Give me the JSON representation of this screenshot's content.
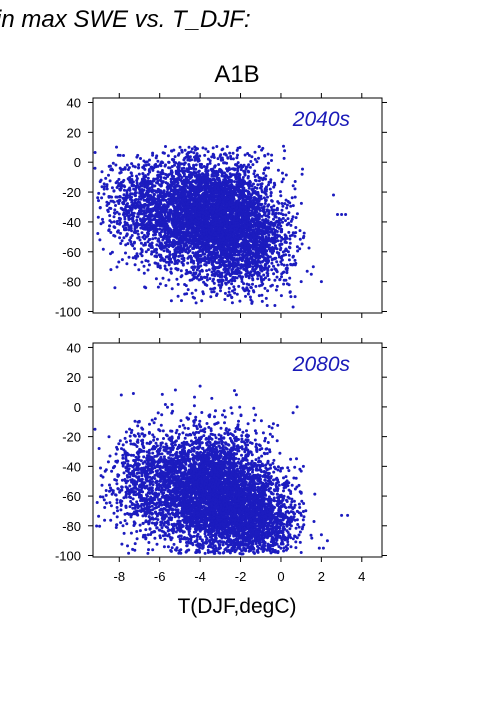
{
  "heading": "in max SWE vs. T_DJF:",
  "colors": {
    "points": "#1c1cbf",
    "panel_label": "#1a1ab8",
    "frame": "#000000"
  },
  "chart_data": {
    "type": "scatter",
    "title": "A1B",
    "xlabel": "T(DJF,degC)",
    "ylabel": "",
    "xlim": [
      -9.3,
      5
    ],
    "ylim": [
      -101,
      43
    ],
    "x_ticks": [
      -8,
      -6,
      -4,
      -2,
      0,
      2,
      4
    ],
    "y_ticks": [
      40,
      20,
      0,
      -20,
      -40,
      -60,
      -80,
      -100
    ],
    "grid": false,
    "panels": [
      {
        "label": "2040s",
        "clusters": [
          {
            "x_mean": -3.6,
            "x_sd": 1.5,
            "y_mean": -35,
            "y_sd": 19,
            "n": 4200
          },
          {
            "x_mean": -1.6,
            "x_sd": 1.1,
            "y_mean": -55,
            "y_sd": 18,
            "n": 1200
          },
          {
            "x_mean": -6.8,
            "x_sd": 1.1,
            "y_mean": -28,
            "y_sd": 17,
            "n": 700
          }
        ],
        "y_clip": [
          -97,
          11
        ],
        "outliers": [
          [
            -9.2,
            -4
          ],
          [
            -8.9,
            -12
          ],
          [
            1.3,
            -73
          ],
          [
            1.6,
            -70
          ],
          [
            2.8,
            -35
          ],
          [
            3.2,
            -35
          ],
          [
            3.0,
            -35
          ],
          [
            1.0,
            -80
          ],
          [
            2.0,
            -80
          ],
          [
            0.6,
            -97
          ],
          [
            -0.3,
            -96
          ],
          [
            2.6,
            -22
          ],
          [
            -0.5,
            -83
          ],
          [
            1.5,
            -75
          ],
          [
            0.7,
            -90
          ]
        ]
      },
      {
        "label": "2080s",
        "clusters": [
          {
            "x_mean": -3.4,
            "x_sd": 1.5,
            "y_mean": -57,
            "y_sd": 20,
            "n": 4200
          },
          {
            "x_mean": -1.3,
            "x_sd": 1.1,
            "y_mean": -78,
            "y_sd": 14,
            "n": 1300
          },
          {
            "x_mean": -6.6,
            "x_sd": 1.1,
            "y_mean": -52,
            "y_sd": 19,
            "n": 700
          }
        ],
        "y_clip": [
          -99,
          15
        ],
        "outliers": [
          [
            -9.2,
            -15
          ],
          [
            -9.0,
            -28
          ],
          [
            3.0,
            -73
          ],
          [
            3.3,
            -73
          ],
          [
            2.0,
            -86
          ],
          [
            1.9,
            -95
          ],
          [
            2.1,
            -95
          ],
          [
            1.0,
            -98
          ],
          [
            -7.3,
            9
          ],
          [
            -7.9,
            8
          ],
          [
            -4.0,
            14
          ],
          [
            -2.3,
            11
          ],
          [
            0.8,
            0
          ],
          [
            0.6,
            -4
          ],
          [
            2.3,
            -90
          ]
        ]
      }
    ]
  }
}
